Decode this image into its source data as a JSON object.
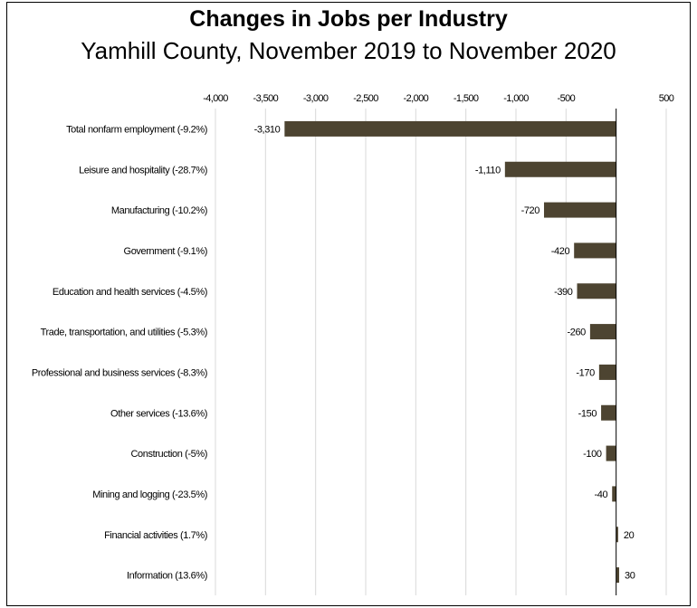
{
  "chart_data": {
    "type": "bar",
    "orientation": "horizontal",
    "title": "Changes in Jobs per Industry",
    "subtitle": "Yamhill County, November 2019 to November 2020",
    "categories": [
      "Total nonfarm employment (-9.2%)",
      "Leisure and hospitality (-28.7%)",
      "Manufacturing (-10.2%)",
      "Government (-9.1%)",
      "Education and health services (-4.5%)",
      "Trade, transportation, and utilities (-5.3%)",
      "Professional and business services (-8.3%)",
      "Other services (-13.6%)",
      "Construction (-5%)",
      "Mining and logging (-23.5%)",
      "Financial activities (1.7%)",
      "Information (13.6%)"
    ],
    "values": [
      -3310,
      -1110,
      -720,
      -420,
      -390,
      -260,
      -170,
      -150,
      -100,
      -40,
      20,
      30
    ],
    "data_labels": [
      "-3,310",
      "-1,110",
      "-720",
      "-420",
      "-390",
      "-260",
      "-170",
      "-150",
      "-100",
      "-40",
      "20",
      "30"
    ],
    "xlim": [
      -4000,
      500
    ],
    "x_ticks": [
      -4000,
      -3500,
      -3000,
      -2500,
      -2000,
      -1500,
      -1000,
      -500,
      500
    ],
    "x_tick_labels": [
      "-4,000",
      "-3,500",
      "-3,000",
      "-2,500",
      "-2,000",
      "-1,500",
      "-1,000",
      "-500",
      "500"
    ],
    "x_axis_position": "top",
    "grid": true,
    "legend": "none",
    "bar_color": "#4d4431",
    "grid_color": "#d9d9d9"
  }
}
